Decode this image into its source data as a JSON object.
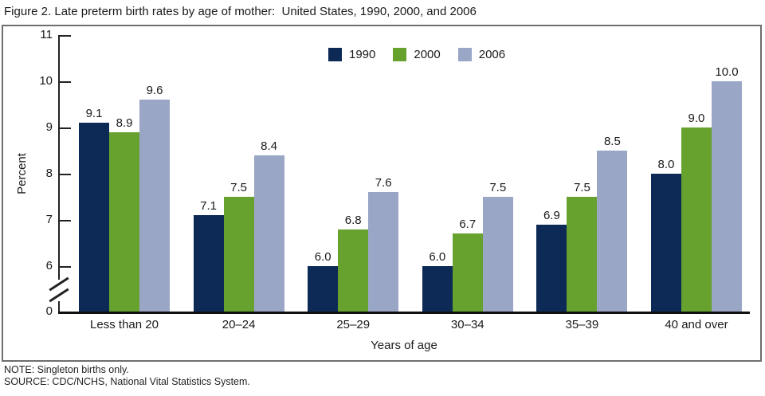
{
  "figure": {
    "title": "Figure 2. Late preterm birth rates by age of mother:  United States, 1990, 2000, and 2006",
    "note": "NOTE: Singleton births only.",
    "source": "SOURCE: CDC/NCHS, National Vital Statistics System."
  },
  "chart_data": {
    "type": "bar",
    "title": "Late preterm birth rates by age of mother: United States, 1990, 2000, and 2006",
    "xlabel": "Years of age",
    "ylabel": "Percent",
    "categories": [
      "Less than 20",
      "20–24",
      "25–29",
      "30–34",
      "35–39",
      "40 and over"
    ],
    "series": [
      {
        "name": "1990",
        "color": "#0d2a56",
        "values": [
          9.1,
          7.1,
          6.0,
          6.0,
          6.9,
          8.0
        ]
      },
      {
        "name": "2000",
        "color": "#67a22f",
        "values": [
          8.9,
          7.5,
          6.8,
          6.7,
          7.5,
          9.0
        ]
      },
      {
        "name": "2006",
        "color": "#9aa6c6",
        "values": [
          9.6,
          8.4,
          7.6,
          7.5,
          8.5,
          10.0
        ]
      }
    ],
    "yticks": [
      0,
      6,
      7,
      8,
      9,
      10,
      11
    ],
    "ylim": [
      0,
      11
    ],
    "axis_break": {
      "between": [
        0,
        6
      ]
    },
    "legend_position": "top-center",
    "grid": false,
    "value_labels": true,
    "value_label_decimals": 1
  }
}
